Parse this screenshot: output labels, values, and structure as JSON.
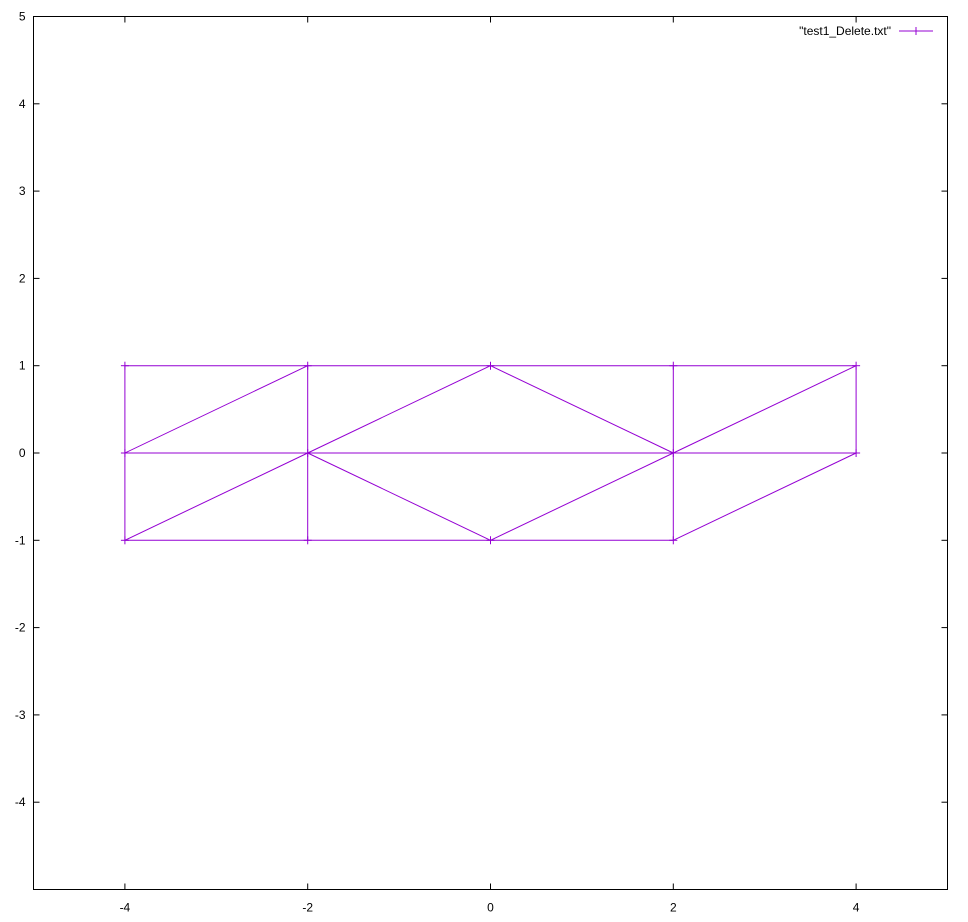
{
  "chart_data": {
    "type": "line",
    "title": "",
    "xlabel": "",
    "ylabel": "",
    "xlim": [
      -5,
      5
    ],
    "ylim": [
      -5,
      5
    ],
    "xticks": [
      -4,
      -2,
      0,
      2,
      4
    ],
    "xtick_labels": [
      "-4",
      "-2",
      "0",
      "2",
      "4"
    ],
    "yticks": [
      -4,
      -3,
      -2,
      -1,
      0,
      1,
      2,
      3,
      4,
      5
    ],
    "ytick_labels": [
      "-4",
      "-3",
      "-2",
      "-1",
      "0",
      "1",
      "2",
      "3",
      "4",
      "5"
    ],
    "grid": false,
    "legend_position": "top-right",
    "color": "#9400d3",
    "series": [
      {
        "name": "\"test1_Delete.txt\"",
        "marker": "plus",
        "segments": [
          [
            [
              -4,
              1
            ],
            [
              -2,
              1
            ]
          ],
          [
            [
              -2,
              1
            ],
            [
              0,
              1
            ]
          ],
          [
            [
              0,
              1
            ],
            [
              2,
              1
            ]
          ],
          [
            [
              2,
              1
            ],
            [
              4,
              1
            ]
          ],
          [
            [
              -4,
              0
            ],
            [
              4,
              0
            ]
          ],
          [
            [
              -4,
              -1
            ],
            [
              -2,
              -1
            ]
          ],
          [
            [
              -2,
              -1
            ],
            [
              0,
              -1
            ]
          ],
          [
            [
              0,
              -1
            ],
            [
              2,
              -1
            ]
          ],
          [
            [
              -4,
              -1
            ],
            [
              -4,
              1
            ]
          ],
          [
            [
              -2,
              -1
            ],
            [
              -2,
              1
            ]
          ],
          [
            [
              2,
              -1
            ],
            [
              2,
              1
            ]
          ],
          [
            [
              4,
              0
            ],
            [
              4,
              1
            ]
          ],
          [
            [
              -4,
              0
            ],
            [
              -2,
              1
            ]
          ],
          [
            [
              -4,
              -1
            ],
            [
              -2,
              0
            ]
          ],
          [
            [
              -2,
              0
            ],
            [
              0,
              1
            ]
          ],
          [
            [
              -2,
              0
            ],
            [
              0,
              -1
            ]
          ],
          [
            [
              0,
              1
            ],
            [
              2,
              0
            ]
          ],
          [
            [
              0,
              -1
            ],
            [
              2,
              0
            ]
          ],
          [
            [
              2,
              0
            ],
            [
              4,
              1
            ]
          ],
          [
            [
              2,
              -1
            ],
            [
              4,
              0
            ]
          ]
        ],
        "points": [
          [
            -4,
            1
          ],
          [
            -2,
            1
          ],
          [
            0,
            1
          ],
          [
            2,
            1
          ],
          [
            4,
            1
          ],
          [
            -4,
            0
          ],
          [
            -2,
            0
          ],
          [
            2,
            0
          ],
          [
            4,
            0
          ],
          [
            -4,
            -1
          ],
          [
            -2,
            -1
          ],
          [
            0,
            -1
          ],
          [
            2,
            -1
          ]
        ]
      }
    ]
  }
}
